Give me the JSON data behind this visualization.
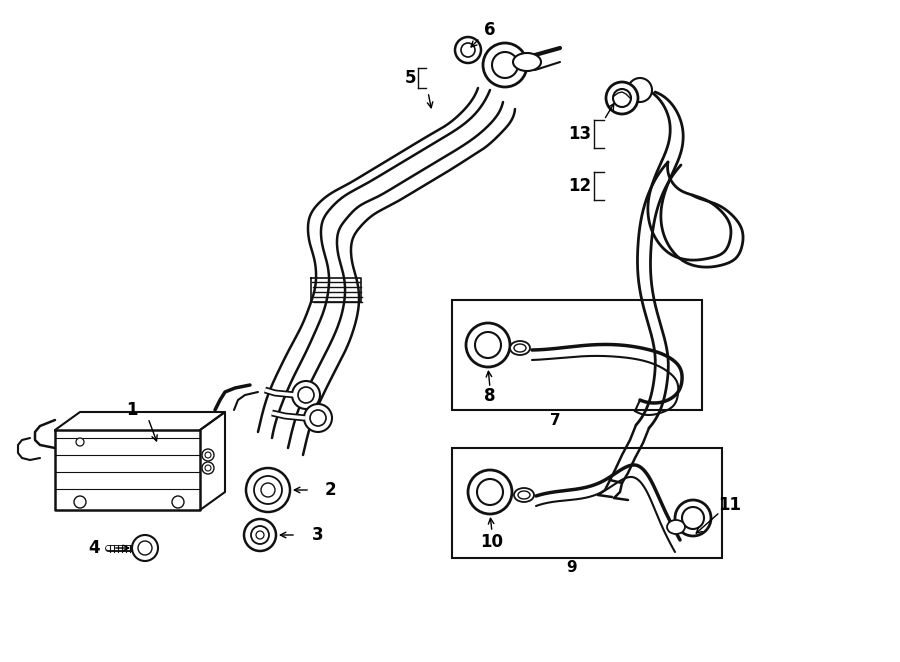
{
  "background_color": "#ffffff",
  "line_color": "#111111",
  "fig_width": 9.0,
  "fig_height": 6.62,
  "dpi": 100,
  "xlim": [
    0,
    900
  ],
  "ylim": [
    0,
    662
  ]
}
